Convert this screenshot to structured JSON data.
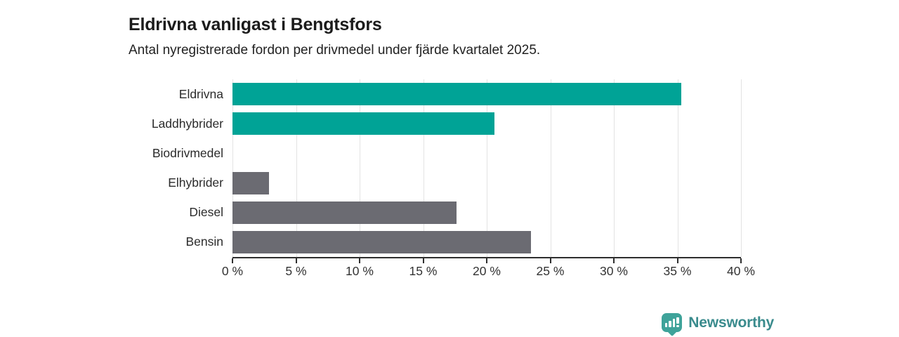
{
  "header": {
    "title": "Eldrivna vanligast i Bengtsfors",
    "subtitle": "Antal nyregistrerade fordon per drivmedel under fjärde kvartalet 2025."
  },
  "chart_data": {
    "type": "bar",
    "orientation": "horizontal",
    "title": "Eldrivna vanligast i Bengtsfors",
    "subtitle": "Antal nyregistrerade fordon per drivmedel under fjärde kvartalet 2025.",
    "categories": [
      "Eldrivna",
      "Laddhybrider",
      "Biodrivmedel",
      "Elhybrider",
      "Diesel",
      "Bensin"
    ],
    "values": [
      35.3,
      20.6,
      0,
      2.9,
      17.6,
      23.5
    ],
    "unit": "%",
    "xlim": [
      0,
      40
    ],
    "x_tick_labels": [
      "0 %",
      "5 %",
      "10 %",
      "15 %",
      "20 %",
      "25 %",
      "30 %",
      "35 %",
      "40 %"
    ],
    "grid": "vertical",
    "legend": "none",
    "bar_colors": [
      "#00a396",
      "#00a396",
      "#6b6b72",
      "#6b6b72",
      "#6b6b72",
      "#6b6b72"
    ]
  },
  "colors": {
    "teal_bar": "#00a396",
    "gray_bar": "#6b6b72",
    "grid_line": "#e3e3e3",
    "axis_line": "#2e2e2e",
    "logo_icon": "#3fa39a",
    "brand_text": "#3a8b8d"
  },
  "footer": {
    "brand_name": "Newsworthy",
    "logo_icon": "bar-chart-speech-bubble-icon"
  }
}
